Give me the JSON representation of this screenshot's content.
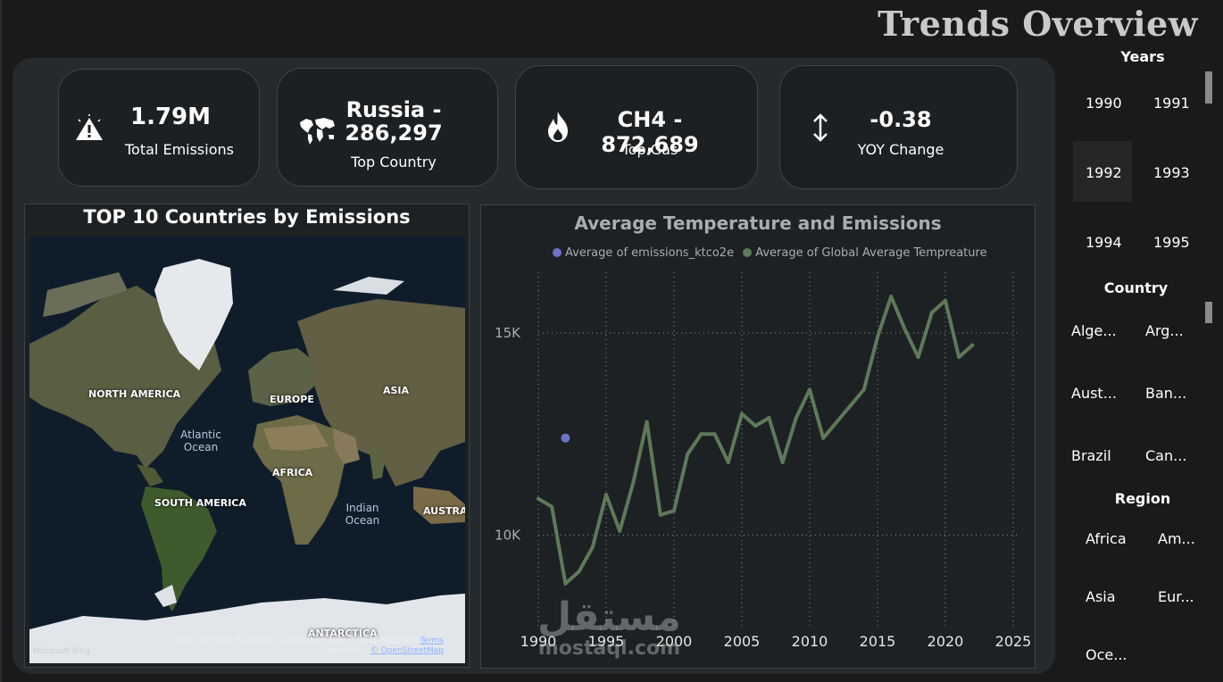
{
  "page": {
    "title": "Trends Overview"
  },
  "kpis": [
    {
      "value": "1.79M",
      "label": "Total Emissions",
      "icon": "warning-icon"
    },
    {
      "value_line1": "Russia -",
      "value_line2": "286,297",
      "label": "Top Country",
      "icon": "world-map-icon"
    },
    {
      "value": "CH4 - 872,689",
      "label": "Top Gas",
      "icon": "flame-icon"
    },
    {
      "value": "-0.38",
      "label": "YOY Change",
      "icon": "up-down-arrow-icon"
    }
  ],
  "map": {
    "title": "TOP 10 Countries by Emissions",
    "labels": {
      "north_america": "NORTH AMERICA",
      "europe": "EUROPE",
      "asia": "ASIA",
      "africa": "AFRICA",
      "south_america": "SOUTH AMERICA",
      "australia": "AUSTRA",
      "antarctica": "ANTARCTICA",
      "atlantic": "Atlantic Ocean",
      "indian": "Indian Ocean"
    },
    "credit_line1": "© 2025 TomTom, Earthstar Geographics SIO, © 2025 Microsoft",
    "credit_terms": "Terms",
    "credit_line2": "Corporation, ",
    "credit_osm": "© OpenStreetMap",
    "bing": "Microsoft Bing"
  },
  "chart_data": {
    "type": "line",
    "title": "Average Temperature and Emissions",
    "series": [
      {
        "name": "Average of emissions_ktco2e",
        "color": "#6b74c6",
        "points": [
          [
            1992,
            12400
          ]
        ]
      },
      {
        "name": "Average of Global Average Tempreature",
        "color": "#5e7a59",
        "points": [
          [
            1990,
            10900
          ],
          [
            1991,
            10700
          ],
          [
            1992,
            8800
          ],
          [
            1993,
            9100
          ],
          [
            1994,
            9700
          ],
          [
            1995,
            11000
          ],
          [
            1996,
            10100
          ],
          [
            1997,
            11300
          ],
          [
            1998,
            12800
          ],
          [
            1999,
            10500
          ],
          [
            2000,
            10600
          ],
          [
            2001,
            12000
          ],
          [
            2002,
            12500
          ],
          [
            2003,
            12500
          ],
          [
            2004,
            11800
          ],
          [
            2005,
            13000
          ],
          [
            2006,
            12700
          ],
          [
            2007,
            12900
          ],
          [
            2008,
            11800
          ],
          [
            2009,
            12900
          ],
          [
            2010,
            13600
          ],
          [
            2011,
            12400
          ],
          [
            2012,
            12800
          ],
          [
            2013,
            13200
          ],
          [
            2014,
            13600
          ],
          [
            2015,
            14900
          ],
          [
            2016,
            15900
          ],
          [
            2017,
            15100
          ],
          [
            2018,
            14400
          ],
          [
            2019,
            15500
          ],
          [
            2020,
            15800
          ],
          [
            2021,
            14400
          ],
          [
            2022,
            14700
          ]
        ]
      }
    ],
    "xlim": [
      1990,
      2025
    ],
    "ylim": [
      8000,
      16500
    ],
    "xticks": [
      "1990",
      "1995",
      "2000",
      "2005",
      "2010",
      "2015",
      "2020",
      "2025"
    ],
    "yticks": [
      {
        "value": 10000,
        "label": "10K"
      },
      {
        "value": 15000,
        "label": "15K"
      }
    ],
    "legend_position": "top",
    "grid": true
  },
  "slicers": {
    "years": {
      "title": "Years",
      "items": [
        "1990",
        "1991",
        "1992",
        "1993",
        "1994",
        "1995"
      ],
      "selected": "1992"
    },
    "country": {
      "title": "Country",
      "items": [
        "Alge...",
        "Arg...",
        "Aust...",
        "Ban...",
        "Brazil",
        "Can..."
      ]
    },
    "region": {
      "title": "Region",
      "items": [
        "Africa",
        "Am...",
        "Asia",
        "Eur...",
        "Oce..."
      ]
    }
  },
  "watermark": {
    "arabic": "مستقل",
    "latin": "mostaql.com"
  }
}
